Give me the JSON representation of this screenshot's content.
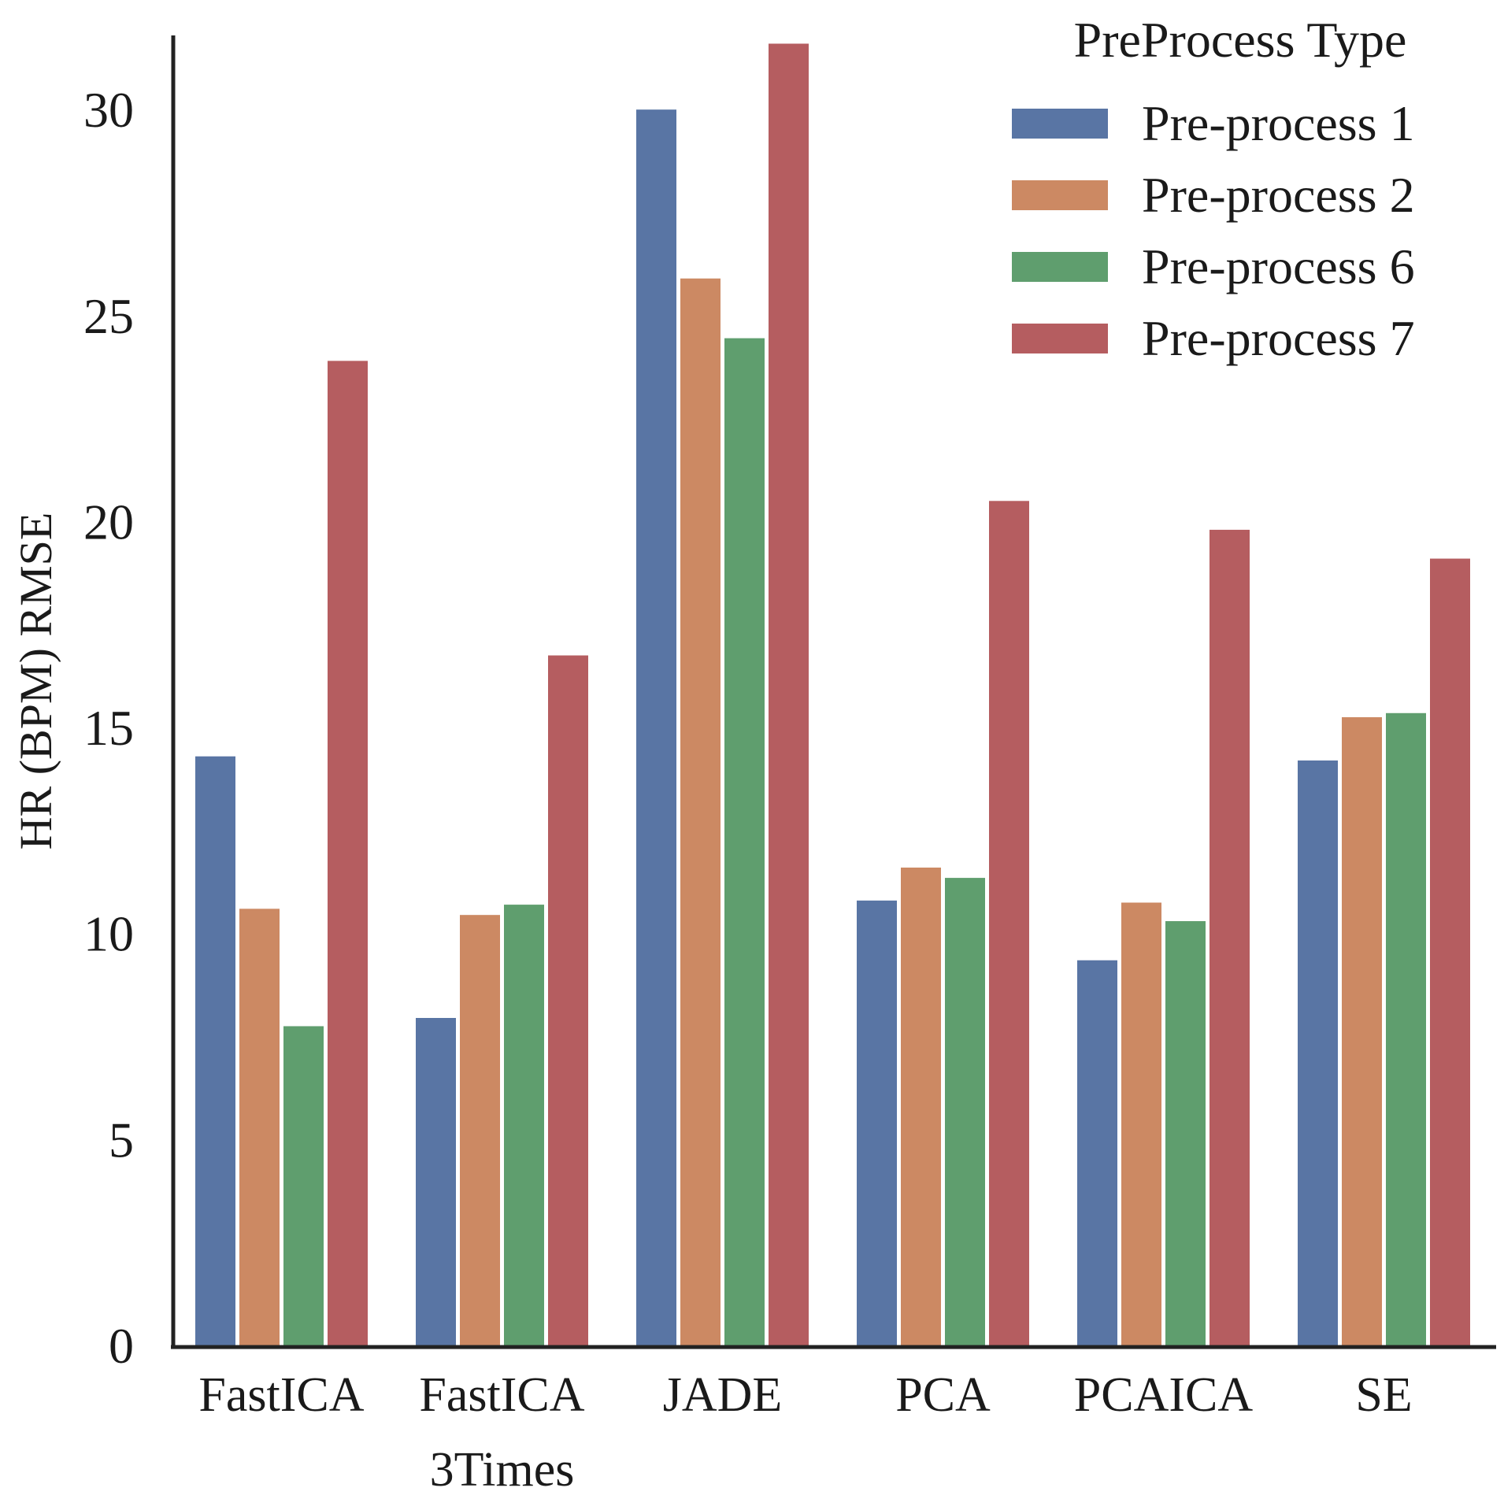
{
  "chart_data": {
    "type": "bar",
    "title": "",
    "xlabel": "",
    "ylabel": "HR (BPM) RMSE",
    "ylim": [
      0,
      31.8
    ],
    "yticks": [
      0,
      5,
      10,
      15,
      20,
      25,
      30
    ],
    "ytick_labels": [
      "0",
      "5",
      "10",
      "15",
      "20",
      "25",
      "30"
    ],
    "grid": false,
    "categories": [
      [
        "FastICA"
      ],
      [
        "FastICA",
        "3Times"
      ],
      [
        "JADE"
      ],
      [
        "PCA"
      ],
      [
        "PCAICA"
      ],
      [
        "SE"
      ]
    ],
    "legend": {
      "title": "PreProcess Type",
      "placement": "top-right"
    },
    "series": [
      {
        "name": "Pre-process 1",
        "color": "#5975a4",
        "values": [
          14.3,
          7.95,
          30.0,
          10.8,
          9.35,
          14.2
        ]
      },
      {
        "name": "Pre-process 2",
        "color": "#cc8963",
        "values": [
          10.6,
          10.45,
          25.9,
          11.6,
          10.75,
          15.25
        ]
      },
      {
        "name": "Pre-process 6",
        "color": "#5f9e6e",
        "values": [
          7.75,
          10.7,
          24.45,
          11.35,
          10.3,
          15.35
        ]
      },
      {
        "name": "Pre-process 7",
        "color": "#b55d60",
        "values": [
          23.9,
          16.75,
          31.6,
          20.5,
          19.8,
          19.1
        ]
      }
    ]
  }
}
